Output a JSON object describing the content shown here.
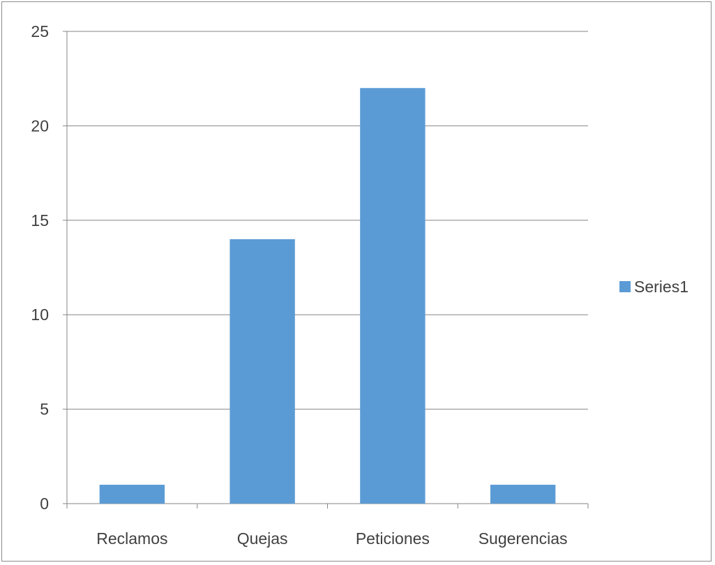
{
  "chart_data": {
    "type": "bar",
    "categories": [
      "Reclamos",
      "Quejas",
      "Peticiones",
      "Sugerencias"
    ],
    "series": [
      {
        "name": "Series1",
        "values": [
          1,
          14,
          22,
          1
        ]
      }
    ],
    "title": "",
    "xlabel": "",
    "ylabel": "",
    "ylim": [
      0,
      25
    ],
    "yticks": [
      "0",
      "5",
      "10",
      "15",
      "20",
      "25"
    ],
    "grid": true,
    "legend_position": "right",
    "bar_color": "#5b9bd5",
    "gridline_color": "#868686",
    "axis_color": "#868686",
    "text_color": "#404040"
  }
}
